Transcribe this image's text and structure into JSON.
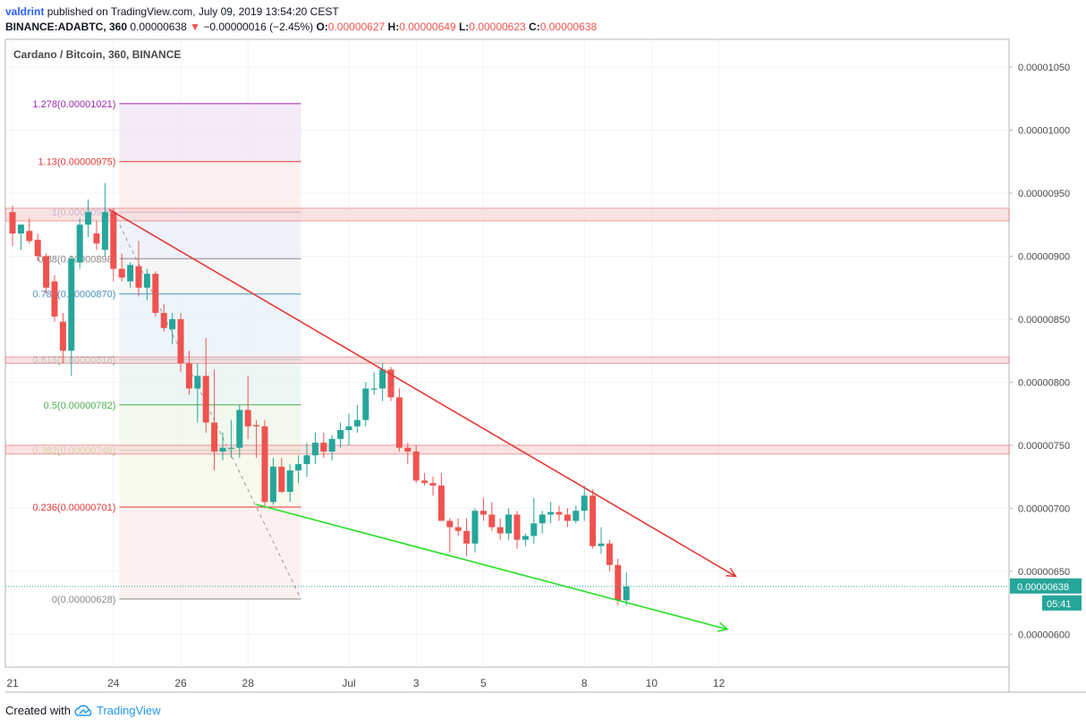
{
  "header": {
    "publisher": "valdrint",
    "published_text": "published on TradingView.com, July 09, 2019 13:54:20 CEST",
    "symbol": "BINANCE:ADABTC, 360",
    "last": "0.00000638",
    "change": "−0.00000016 (−2.45%)",
    "o_label": "O:",
    "o_value": "0.00000627",
    "h_label": "H:",
    "h_value": "0.00000649",
    "l_label": "L:",
    "l_value": "0.00000623",
    "c_label": "C:",
    "c_value": "0.00000638"
  },
  "legend_title": "Cardano / Bitcoin, 360, BINANCE",
  "footer": {
    "created_with": "Created with",
    "brand": "TradingView"
  },
  "colors": {
    "up": "#26a69a",
    "down": "#ef5350",
    "resistance_line": "#e53935",
    "support_line": "#4caf50",
    "zone_fill": "#f8d7d7",
    "zone_border": "#e57373"
  },
  "chart_data": {
    "type": "candlestick",
    "title": "Cardano / Bitcoin, 360, BINANCE",
    "ylim": [
      5.74e-06,
      1.072e-05
    ],
    "y_ticks": [
      "0.00001050",
      "0.00001000",
      "0.00000950",
      "0.00000900",
      "0.00000850",
      "0.00000800",
      "0.00000750",
      "0.00000700",
      "0.00000650",
      "0.00000600"
    ],
    "x_ticks": [
      {
        "label": "21",
        "bar": 0
      },
      {
        "label": "24",
        "bar": 12
      },
      {
        "label": "26",
        "bar": 20
      },
      {
        "label": "28",
        "bar": 28
      },
      {
        "label": "Jul",
        "bar": 40
      },
      {
        "label": "3",
        "bar": 48
      },
      {
        "label": "5",
        "bar": 56
      },
      {
        "label": "8",
        "bar": 68
      },
      {
        "label": "10",
        "bar": 76
      },
      {
        "label": "12",
        "bar": 84
      }
    ],
    "last_price_label": "0.00000638",
    "countdown_label": "05:41",
    "candles": [
      {
        "o": 935,
        "h": 940,
        "l": 908,
        "c": 918
      },
      {
        "o": 918,
        "h": 925,
        "l": 905,
        "c": 925
      },
      {
        "o": 920,
        "h": 930,
        "l": 910,
        "c": 912
      },
      {
        "o": 913,
        "h": 918,
        "l": 896,
        "c": 900
      },
      {
        "o": 900,
        "h": 902,
        "l": 870,
        "c": 875
      },
      {
        "o": 880,
        "h": 885,
        "l": 848,
        "c": 852
      },
      {
        "o": 848,
        "h": 855,
        "l": 815,
        "c": 825
      },
      {
        "o": 825,
        "h": 900,
        "l": 805,
        "c": 898
      },
      {
        "o": 895,
        "h": 930,
        "l": 890,
        "c": 925
      },
      {
        "o": 925,
        "h": 945,
        "l": 915,
        "c": 935
      },
      {
        "o": 918,
        "h": 928,
        "l": 905,
        "c": 910
      },
      {
        "o": 905,
        "h": 958,
        "l": 900,
        "c": 935
      },
      {
        "o": 935,
        "h": 938,
        "l": 880,
        "c": 890
      },
      {
        "o": 890,
        "h": 902,
        "l": 880,
        "c": 883
      },
      {
        "o": 880,
        "h": 895,
        "l": 875,
        "c": 893
      },
      {
        "o": 892,
        "h": 912,
        "l": 868,
        "c": 875
      },
      {
        "o": 875,
        "h": 890,
        "l": 865,
        "c": 886
      },
      {
        "o": 886,
        "h": 888,
        "l": 852,
        "c": 855
      },
      {
        "o": 855,
        "h": 862,
        "l": 840,
        "c": 843
      },
      {
        "o": 842,
        "h": 855,
        "l": 830,
        "c": 850
      },
      {
        "o": 850,
        "h": 855,
        "l": 808,
        "c": 815
      },
      {
        "o": 815,
        "h": 825,
        "l": 790,
        "c": 795
      },
      {
        "o": 795,
        "h": 815,
        "l": 768,
        "c": 805
      },
      {
        "o": 805,
        "h": 835,
        "l": 760,
        "c": 768
      },
      {
        "o": 768,
        "h": 810,
        "l": 730,
        "c": 745
      },
      {
        "o": 745,
        "h": 760,
        "l": 738,
        "c": 748
      },
      {
        "o": 748,
        "h": 770,
        "l": 740,
        "c": 748
      },
      {
        "o": 748,
        "h": 782,
        "l": 740,
        "c": 778
      },
      {
        "o": 778,
        "h": 805,
        "l": 755,
        "c": 765
      },
      {
        "o": 766,
        "h": 770,
        "l": 740,
        "c": 765
      },
      {
        "o": 765,
        "h": 770,
        "l": 700,
        "c": 705
      },
      {
        "o": 705,
        "h": 740,
        "l": 703,
        "c": 733
      },
      {
        "o": 733,
        "h": 740,
        "l": 712,
        "c": 713
      },
      {
        "o": 713,
        "h": 735,
        "l": 705,
        "c": 730
      },
      {
        "o": 730,
        "h": 742,
        "l": 720,
        "c": 735
      },
      {
        "o": 735,
        "h": 752,
        "l": 725,
        "c": 742
      },
      {
        "o": 742,
        "h": 760,
        "l": 735,
        "c": 752
      },
      {
        "o": 752,
        "h": 760,
        "l": 740,
        "c": 745
      },
      {
        "o": 745,
        "h": 758,
        "l": 738,
        "c": 755
      },
      {
        "o": 755,
        "h": 768,
        "l": 748,
        "c": 762
      },
      {
        "o": 762,
        "h": 775,
        "l": 750,
        "c": 765
      },
      {
        "o": 765,
        "h": 782,
        "l": 760,
        "c": 770
      },
      {
        "o": 770,
        "h": 800,
        "l": 765,
        "c": 795
      },
      {
        "o": 795,
        "h": 808,
        "l": 790,
        "c": 795
      },
      {
        "o": 795,
        "h": 815,
        "l": 785,
        "c": 810
      },
      {
        "o": 810,
        "h": 812,
        "l": 785,
        "c": 788
      },
      {
        "o": 788,
        "h": 795,
        "l": 745,
        "c": 748
      },
      {
        "o": 748,
        "h": 752,
        "l": 735,
        "c": 745
      },
      {
        "o": 745,
        "h": 750,
        "l": 720,
        "c": 722
      },
      {
        "o": 722,
        "h": 728,
        "l": 718,
        "c": 720
      },
      {
        "o": 720,
        "h": 725,
        "l": 710,
        "c": 718
      },
      {
        "o": 718,
        "h": 728,
        "l": 690,
        "c": 690
      },
      {
        "o": 690,
        "h": 692,
        "l": 665,
        "c": 685
      },
      {
        "o": 685,
        "h": 692,
        "l": 678,
        "c": 682
      },
      {
        "o": 682,
        "h": 692,
        "l": 662,
        "c": 672
      },
      {
        "o": 672,
        "h": 700,
        "l": 665,
        "c": 698
      },
      {
        "o": 698,
        "h": 708,
        "l": 690,
        "c": 695
      },
      {
        "o": 695,
        "h": 705,
        "l": 682,
        "c": 685
      },
      {
        "o": 685,
        "h": 692,
        "l": 675,
        "c": 680
      },
      {
        "o": 680,
        "h": 700,
        "l": 675,
        "c": 695
      },
      {
        "o": 695,
        "h": 698,
        "l": 668,
        "c": 675
      },
      {
        "o": 675,
        "h": 680,
        "l": 670,
        "c": 678
      },
      {
        "o": 678,
        "h": 708,
        "l": 672,
        "c": 688
      },
      {
        "o": 688,
        "h": 698,
        "l": 680,
        "c": 695
      },
      {
        "o": 695,
        "h": 705,
        "l": 688,
        "c": 697
      },
      {
        "o": 697,
        "h": 702,
        "l": 690,
        "c": 695
      },
      {
        "o": 695,
        "h": 700,
        "l": 685,
        "c": 690
      },
      {
        "o": 690,
        "h": 702,
        "l": 688,
        "c": 698
      },
      {
        "o": 698,
        "h": 718,
        "l": 690,
        "c": 710
      },
      {
        "o": 710,
        "h": 715,
        "l": 668,
        "c": 670
      },
      {
        "o": 670,
        "h": 685,
        "l": 664,
        "c": 672
      },
      {
        "o": 672,
        "h": 675,
        "l": 650,
        "c": 655
      },
      {
        "o": 655,
        "h": 660,
        "l": 623,
        "c": 627
      },
      {
        "o": 627,
        "h": 649,
        "l": 623,
        "c": 638
      }
    ],
    "fibonacci": [
      {
        "label": "1.278(0.00001021)",
        "value": 1021,
        "color": "#9c27b0"
      },
      {
        "label": "1.13(0.00000975)",
        "value": 975,
        "color": "#e53935"
      },
      {
        "label": "1(0.00000935)",
        "value": 935,
        "color": "#5c6bc0"
      },
      {
        "label": "0.88(0.00000898)",
        "value": 898,
        "color": "#888888"
      },
      {
        "label": "0.786(0.00000870)",
        "value": 870,
        "color": "#4a90c2"
      },
      {
        "label": "0.618(0.00000818)",
        "value": 818,
        "color": "#26a69a"
      },
      {
        "label": "0.5(0.00000782)",
        "value": 782,
        "color": "#4caf50"
      },
      {
        "label": "0.382(0.00000746)",
        "value": 746,
        "color": "#8bc34a"
      },
      {
        "label": "0.236(0.00000701)",
        "value": 701,
        "color": "#e53935"
      },
      {
        "label": "0(0.00000628)",
        "value": 628,
        "color": "#888888"
      }
    ],
    "horizontal_zones": [
      {
        "top": 9.38e-06,
        "bottom": 9.28e-06
      },
      {
        "top": 8.2e-06,
        "bottom": 8.15e-06
      },
      {
        "top": 7.5e-06,
        "bottom": 7.43e-06
      }
    ],
    "trendlines": [
      {
        "name": "resistance",
        "from": {
          "bar": 11.5,
          "price": 9.37e-06
        },
        "to": {
          "bar": 86,
          "price": 6.46e-06
        }
      },
      {
        "name": "support",
        "from": {
          "bar": 29,
          "price": 7.03e-06
        },
        "to": {
          "bar": 85,
          "price": 6.04e-06
        }
      }
    ]
  }
}
